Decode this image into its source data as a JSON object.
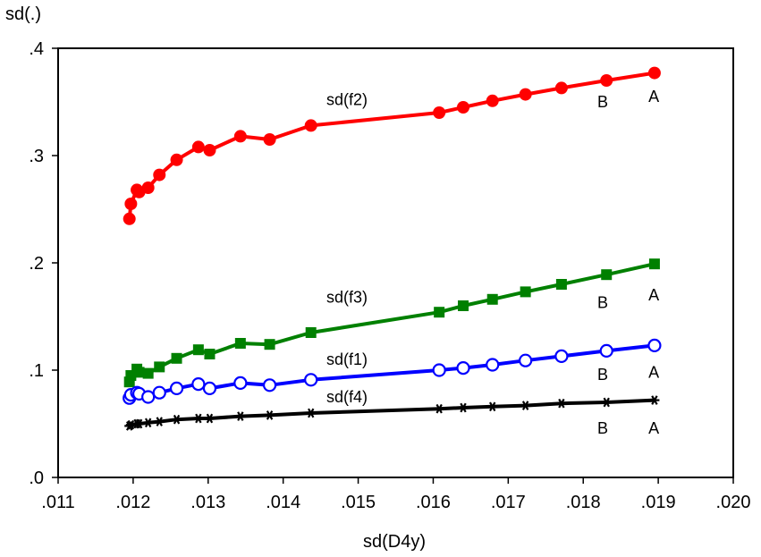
{
  "chart_data": {
    "type": "line",
    "title": "",
    "xlabel": "sd(D4y)",
    "ylabel": "sd(.)",
    "xlim": [
      0.011,
      0.02
    ],
    "ylim": [
      0.0,
      0.4
    ],
    "x_ticks": [
      0.011,
      0.012,
      0.013,
      0.014,
      0.015,
      0.016,
      0.017,
      0.018,
      0.019,
      0.02
    ],
    "x_tick_labels": [
      ".011",
      ".012",
      ".013",
      ".014",
      ".015",
      ".016",
      ".017",
      ".018",
      ".019",
      ".020"
    ],
    "y_ticks": [
      0.0,
      0.1,
      0.2,
      0.3,
      0.4
    ],
    "y_tick_labels": [
      ".0",
      ".1",
      ".2",
      ".3",
      ".4"
    ],
    "grid": false,
    "legend": "none",
    "x": [
      0.01195,
      0.01197,
      0.01205,
      0.01208,
      0.0122,
      0.01235,
      0.01258,
      0.01287,
      0.01302,
      0.01343,
      0.01382,
      0.01437,
      0.01608,
      0.0164,
      0.01679,
      0.01723,
      0.01771,
      0.01831,
      0.01895
    ],
    "series": [
      {
        "name": "sd(f2)",
        "color": "#ff0000",
        "marker": "filled-circle",
        "values": [
          0.241,
          0.255,
          0.268,
          0.266,
          0.27,
          0.282,
          0.296,
          0.308,
          0.305,
          0.318,
          0.315,
          0.328,
          0.34,
          0.345,
          0.351,
          0.357,
          0.363,
          0.37,
          0.377
        ]
      },
      {
        "name": "sd(f3)",
        "color": "#008000",
        "marker": "filled-square",
        "values": [
          0.089,
          0.095,
          0.101,
          0.098,
          0.097,
          0.103,
          0.111,
          0.119,
          0.115,
          0.125,
          0.124,
          0.135,
          0.154,
          0.16,
          0.166,
          0.173,
          0.18,
          0.189,
          0.199
        ]
      },
      {
        "name": "sd(f1)",
        "color": "#0000ff",
        "marker": "open-circle",
        "values": [
          0.074,
          0.077,
          0.079,
          0.078,
          0.075,
          0.079,
          0.083,
          0.087,
          0.083,
          0.088,
          0.086,
          0.091,
          0.1,
          0.102,
          0.105,
          0.109,
          0.113,
          0.118,
          0.123
        ]
      },
      {
        "name": "sd(f4)",
        "color": "#000000",
        "marker": "asterisk",
        "values": [
          0.048,
          0.049,
          0.05,
          0.05,
          0.051,
          0.052,
          0.054,
          0.055,
          0.055,
          0.057,
          0.058,
          0.06,
          0.064,
          0.065,
          0.066,
          0.067,
          0.069,
          0.07,
          0.072
        ]
      }
    ],
    "annotations": [
      {
        "text": "sd(f2)",
        "x": 0.01485,
        "y": 0.352
      },
      {
        "text": "B",
        "x": 0.01826,
        "y": 0.35
      },
      {
        "text": "A",
        "x": 0.01894,
        "y": 0.355
      },
      {
        "text": "sd(f3)",
        "x": 0.01485,
        "y": 0.168
      },
      {
        "text": "B",
        "x": 0.01826,
        "y": 0.163
      },
      {
        "text": "A",
        "x": 0.01894,
        "y": 0.17
      },
      {
        "text": "sd(f1)",
        "x": 0.01485,
        "y": 0.11
      },
      {
        "text": "B",
        "x": 0.01826,
        "y": 0.096
      },
      {
        "text": "A",
        "x": 0.01894,
        "y": 0.098
      },
      {
        "text": "sd(f4)",
        "x": 0.01485,
        "y": 0.075
      },
      {
        "text": "B",
        "x": 0.01826,
        "y": 0.046
      },
      {
        "text": "A",
        "x": 0.01894,
        "y": 0.046
      }
    ]
  }
}
